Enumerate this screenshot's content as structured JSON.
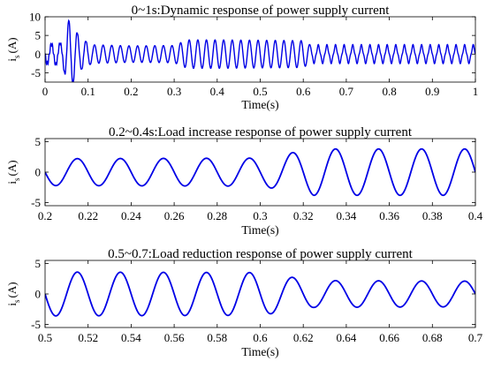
{
  "chart_data": [
    {
      "type": "line",
      "title": "0~1s:Dynamic response of power supply current",
      "xlabel": "Time(s)",
      "ylabel_main": "i",
      "ylabel_sub": "s",
      "ylabel_unit": "(A)",
      "xlim": [
        0,
        1
      ],
      "ylim": [
        -7.5,
        10
      ],
      "xticks": [
        "0",
        "0.1",
        "0.2",
        "0.3",
        "0.4",
        "0.5",
        "0.6",
        "0.7",
        "0.8",
        "0.9",
        "1"
      ],
      "xtick_values": [
        0,
        0.1,
        0.2,
        0.3,
        0.4,
        0.5,
        0.6,
        0.7,
        0.8,
        0.9,
        1
      ],
      "yticks": [
        "10",
        "5",
        "0",
        "-5"
      ],
      "ytick_values": [
        10,
        5,
        0,
        -5
      ],
      "series_color": "#0000e6",
      "frequency_hz": 50,
      "amplitude_segments": [
        {
          "x": 0,
          "amp": 2.5
        },
        {
          "x": 0.04,
          "amp": 3
        },
        {
          "x": 0.055,
          "amp": 9.3
        },
        {
          "x": 0.07,
          "amp": 7
        },
        {
          "x": 0.08,
          "amp": 4.5
        },
        {
          "x": 0.11,
          "amp": 2.5
        },
        {
          "x": 0.2,
          "amp": 2.2
        },
        {
          "x": 0.3,
          "amp": 2.3
        },
        {
          "x": 0.33,
          "amp": 3.8
        },
        {
          "x": 0.4,
          "amp": 3.8
        },
        {
          "x": 0.6,
          "amp": 3.6
        },
        {
          "x": 0.62,
          "amp": 2.2
        },
        {
          "x": 1,
          "amp": 2.2
        }
      ]
    },
    {
      "type": "line",
      "title": "0.2~0.4s:Load increase response of power supply current",
      "xlabel": "Time(s)",
      "ylabel_main": "i",
      "ylabel_sub": "s",
      "ylabel_unit": "(A)",
      "xlim": [
        0.2,
        0.4
      ],
      "ylim": [
        -5.5,
        5.5
      ],
      "xticks": [
        "0.2",
        "0.22",
        "0.24",
        "0.26",
        "0.28",
        "0.3",
        "0.32",
        "0.34",
        "0.36",
        "0.38",
        "0.4"
      ],
      "xtick_values": [
        0.2,
        0.22,
        0.24,
        0.26,
        0.28,
        0.3,
        0.32,
        0.34,
        0.36,
        0.38,
        0.4
      ],
      "yticks": [
        "5",
        "0",
        "-5"
      ],
      "ytick_values": [
        5,
        0,
        -5
      ],
      "series_color": "#0000e6",
      "frequency_hz": 50,
      "amplitude_segments": [
        {
          "x": 0.2,
          "amp": 2.2
        },
        {
          "x": 0.3,
          "amp": 2.3
        },
        {
          "x": 0.325,
          "amp": 3.8
        },
        {
          "x": 0.4,
          "amp": 3.8
        }
      ]
    },
    {
      "type": "line",
      "title": "0.5~0.7:Load reduction response of power supply current",
      "xlabel": "Time(s)",
      "ylabel_main": "i",
      "ylabel_sub": "s",
      "ylabel_unit": "(A)",
      "xlim": [
        0.5,
        0.7
      ],
      "ylim": [
        -5.5,
        5.5
      ],
      "xticks": [
        "0.5",
        "0.52",
        "0.54",
        "0.56",
        "0.58",
        "0.6",
        "0.62",
        "0.64",
        "0.66",
        "0.68",
        "0.7"
      ],
      "xtick_values": [
        0.5,
        0.52,
        0.54,
        0.56,
        0.58,
        0.6,
        0.62,
        0.64,
        0.66,
        0.68,
        0.7
      ],
      "yticks": [
        "5",
        "0",
        "-5"
      ],
      "ytick_values": [
        5,
        0,
        -5
      ],
      "series_color": "#0000e6",
      "frequency_hz": 50,
      "amplitude_segments": [
        {
          "x": 0.5,
          "amp": 3.6
        },
        {
          "x": 0.6,
          "amp": 3.5
        },
        {
          "x": 0.625,
          "amp": 2.2
        },
        {
          "x": 0.7,
          "amp": 2.1
        }
      ]
    }
  ]
}
